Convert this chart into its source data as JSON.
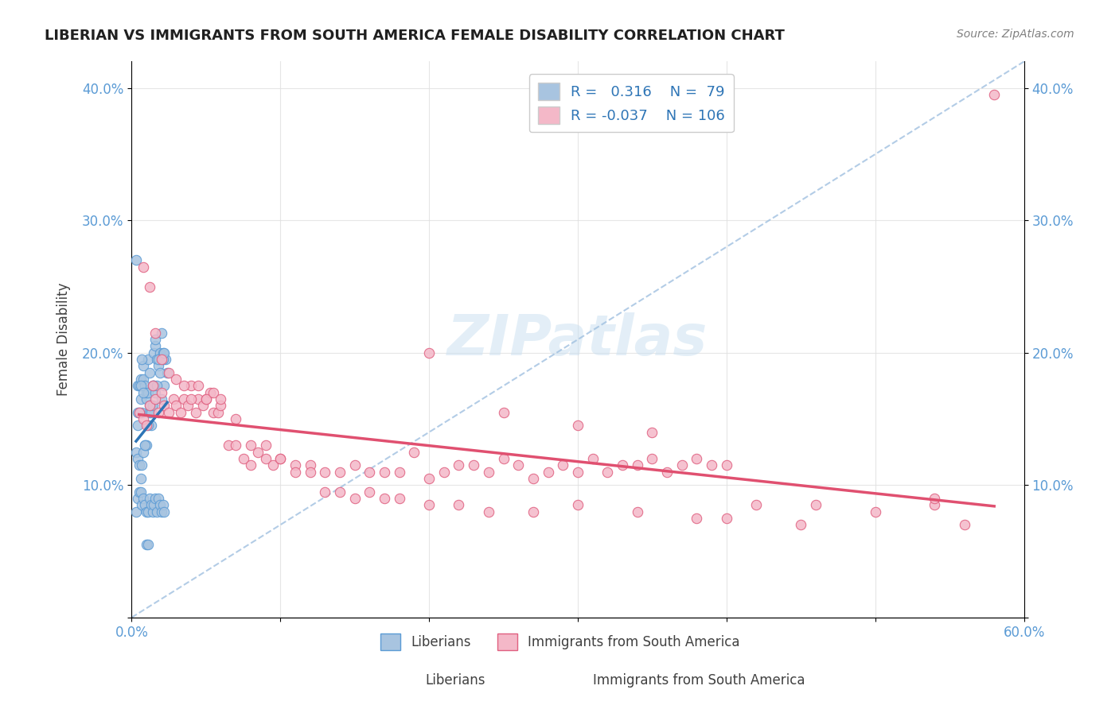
{
  "title": "LIBERIAN VS IMMIGRANTS FROM SOUTH AMERICA FEMALE DISABILITY CORRELATION CHART",
  "source": "Source: ZipAtlas.com",
  "xlabel_bottom": "",
  "ylabel": "Female Disability",
  "xlim": [
    0.0,
    0.6
  ],
  "ylim": [
    0.0,
    0.42
  ],
  "xticks": [
    0.0,
    0.1,
    0.2,
    0.3,
    0.4,
    0.5,
    0.6
  ],
  "xticklabels": [
    "0.0%",
    "",
    "",
    "",
    "",
    "",
    "60.0%"
  ],
  "yticks": [
    0.0,
    0.1,
    0.2,
    0.3,
    0.4
  ],
  "yticklabels": [
    "",
    "10.0%",
    "20.0%",
    "30.0%",
    "40.0%"
  ],
  "liberian_color": "#a8c4e0",
  "liberian_edge_color": "#5b9bd5",
  "sa_color": "#f4b8c8",
  "sa_edge_color": "#e06080",
  "trendline_liberian_color": "#2e75b6",
  "trendline_sa_color": "#e05070",
  "diagonal_color": "#a0c0e0",
  "R_liberian": 0.316,
  "N_liberian": 79,
  "R_sa": -0.037,
  "N_sa": 106,
  "legend_label_liberian": "Liberians",
  "legend_label_sa": "Immigrants from South America",
  "watermark": "ZIPatlas",
  "liberian_x": [
    0.004,
    0.004,
    0.005,
    0.006,
    0.006,
    0.007,
    0.008,
    0.008,
    0.009,
    0.01,
    0.01,
    0.011,
    0.011,
    0.012,
    0.012,
    0.013,
    0.013,
    0.014,
    0.015,
    0.015,
    0.016,
    0.016,
    0.017,
    0.018,
    0.019,
    0.02,
    0.021,
    0.022,
    0.023,
    0.024,
    0.003,
    0.004,
    0.005,
    0.006,
    0.007,
    0.008,
    0.009,
    0.01,
    0.011,
    0.012,
    0.013,
    0.014,
    0.015,
    0.016,
    0.017,
    0.018,
    0.019,
    0.02,
    0.021,
    0.022,
    0.003,
    0.004,
    0.005,
    0.006,
    0.007,
    0.008,
    0.009,
    0.01,
    0.011,
    0.012,
    0.013,
    0.014,
    0.015,
    0.016,
    0.017,
    0.018,
    0.019,
    0.02,
    0.021,
    0.022,
    0.003,
    0.004,
    0.005,
    0.006,
    0.007,
    0.008,
    0.009,
    0.01,
    0.011
  ],
  "liberian_y": [
    0.145,
    0.175,
    0.175,
    0.18,
    0.165,
    0.155,
    0.18,
    0.19,
    0.175,
    0.165,
    0.17,
    0.195,
    0.17,
    0.185,
    0.155,
    0.145,
    0.16,
    0.175,
    0.2,
    0.175,
    0.17,
    0.205,
    0.195,
    0.19,
    0.2,
    0.165,
    0.2,
    0.175,
    0.195,
    0.185,
    0.125,
    0.12,
    0.115,
    0.105,
    0.115,
    0.125,
    0.13,
    0.13,
    0.145,
    0.16,
    0.155,
    0.16,
    0.175,
    0.21,
    0.175,
    0.195,
    0.185,
    0.215,
    0.195,
    0.2,
    0.08,
    0.09,
    0.095,
    0.095,
    0.085,
    0.09,
    0.085,
    0.08,
    0.08,
    0.09,
    0.085,
    0.08,
    0.085,
    0.09,
    0.08,
    0.09,
    0.085,
    0.08,
    0.085,
    0.08,
    0.27,
    0.155,
    0.155,
    0.175,
    0.195,
    0.17,
    0.13,
    0.055,
    0.055
  ],
  "sa_x": [
    0.005,
    0.008,
    0.01,
    0.012,
    0.014,
    0.016,
    0.018,
    0.02,
    0.022,
    0.025,
    0.028,
    0.03,
    0.033,
    0.035,
    0.038,
    0.04,
    0.043,
    0.045,
    0.048,
    0.05,
    0.053,
    0.055,
    0.058,
    0.06,
    0.065,
    0.07,
    0.075,
    0.08,
    0.085,
    0.09,
    0.095,
    0.1,
    0.11,
    0.12,
    0.13,
    0.14,
    0.15,
    0.16,
    0.17,
    0.18,
    0.19,
    0.2,
    0.21,
    0.22,
    0.23,
    0.24,
    0.25,
    0.26,
    0.27,
    0.28,
    0.29,
    0.3,
    0.31,
    0.32,
    0.33,
    0.34,
    0.35,
    0.36,
    0.37,
    0.38,
    0.39,
    0.4,
    0.008,
    0.012,
    0.016,
    0.02,
    0.025,
    0.03,
    0.035,
    0.04,
    0.045,
    0.05,
    0.055,
    0.06,
    0.07,
    0.08,
    0.09,
    0.1,
    0.11,
    0.12,
    0.13,
    0.14,
    0.15,
    0.16,
    0.17,
    0.18,
    0.2,
    0.22,
    0.24,
    0.27,
    0.3,
    0.34,
    0.38,
    0.42,
    0.46,
    0.5,
    0.54,
    0.54,
    0.56,
    0.58,
    0.2,
    0.25,
    0.3,
    0.35,
    0.4,
    0.45
  ],
  "sa_y": [
    0.155,
    0.15,
    0.145,
    0.16,
    0.175,
    0.165,
    0.155,
    0.17,
    0.16,
    0.155,
    0.165,
    0.16,
    0.155,
    0.165,
    0.16,
    0.175,
    0.155,
    0.165,
    0.16,
    0.165,
    0.17,
    0.155,
    0.155,
    0.16,
    0.13,
    0.13,
    0.12,
    0.115,
    0.125,
    0.12,
    0.115,
    0.12,
    0.115,
    0.115,
    0.11,
    0.11,
    0.115,
    0.11,
    0.11,
    0.11,
    0.125,
    0.105,
    0.11,
    0.115,
    0.115,
    0.11,
    0.12,
    0.115,
    0.105,
    0.11,
    0.115,
    0.11,
    0.12,
    0.11,
    0.115,
    0.115,
    0.12,
    0.11,
    0.115,
    0.12,
    0.115,
    0.115,
    0.265,
    0.25,
    0.215,
    0.195,
    0.185,
    0.18,
    0.175,
    0.165,
    0.175,
    0.165,
    0.17,
    0.165,
    0.15,
    0.13,
    0.13,
    0.12,
    0.11,
    0.11,
    0.095,
    0.095,
    0.09,
    0.095,
    0.09,
    0.09,
    0.085,
    0.085,
    0.08,
    0.08,
    0.085,
    0.08,
    0.075,
    0.085,
    0.085,
    0.08,
    0.085,
    0.09,
    0.07,
    0.395,
    0.2,
    0.155,
    0.145,
    0.14,
    0.075,
    0.07
  ]
}
